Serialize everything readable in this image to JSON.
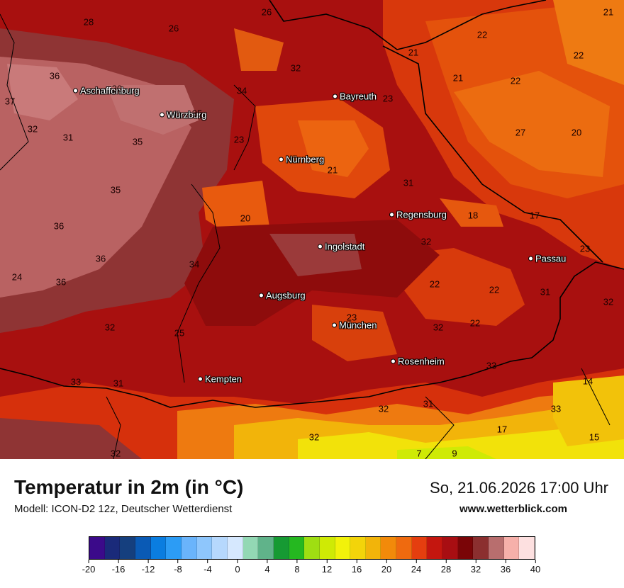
{
  "map": {
    "cities": [
      {
        "name": "Aschaffenburg"
      },
      {
        "name": "Würzburg"
      },
      {
        "name": "Bayreuth"
      },
      {
        "name": "Nürnberg"
      },
      {
        "name": "Regensburg"
      },
      {
        "name": "Ingolstadt"
      },
      {
        "name": "Passau"
      },
      {
        "name": "Augsburg"
      },
      {
        "name": "München"
      },
      {
        "name": "Rosenheim"
      },
      {
        "name": "Kempten"
      }
    ],
    "temperature_values": [
      "26",
      "28",
      "26",
      "21",
      "22",
      "21",
      "22",
      "22",
      "36",
      "30",
      "37",
      "34",
      "32",
      "23",
      "35",
      "21",
      "27",
      "20",
      "32",
      "31",
      "35",
      "23",
      "21",
      "35",
      "31",
      "36",
      "20",
      "18",
      "17",
      "32",
      "36",
      "34",
      "23",
      "24",
      "36",
      "22",
      "22",
      "31",
      "32",
      "25",
      "32",
      "32",
      "23",
      "22",
      "33",
      "33",
      "31",
      "17",
      "14",
      "33",
      "32",
      "32",
      "31",
      "15",
      "32",
      "7",
      "9"
    ]
  },
  "footer": {
    "title": "Temperatur in 2m (in °C)",
    "model": "Modell: ICON-D2 12z, Deutscher Wetterdienst",
    "datetime": "So, 21.06.2026 17:00 Uhr",
    "website": "www.wetterblick.com"
  },
  "legend": {
    "colors": [
      "#3b0a8a",
      "#1a2a7a",
      "#153f7e",
      "#0a5ab5",
      "#0a7de0",
      "#2c9cf5",
      "#6ab4fb",
      "#8ec6fc",
      "#b6d8fd",
      "#d6e8fe",
      "#93d8b4",
      "#60b38a",
      "#169a33",
      "#25b820",
      "#9fde12",
      "#cfea05",
      "#f2f20a",
      "#f3d40a",
      "#f2b40a",
      "#f28a0a",
      "#ef6a0f",
      "#e53e0f",
      "#c4160f",
      "#a80e12",
      "#7a0507",
      "#8b2f2f",
      "#b86e6e",
      "#f6b0aa",
      "#fde0e0"
    ],
    "ticks": [
      "-20",
      "-16",
      "-12",
      "-8",
      "-4",
      "0",
      "4",
      "8",
      "12",
      "16",
      "20",
      "24",
      "28",
      "32",
      "36",
      "40"
    ]
  }
}
